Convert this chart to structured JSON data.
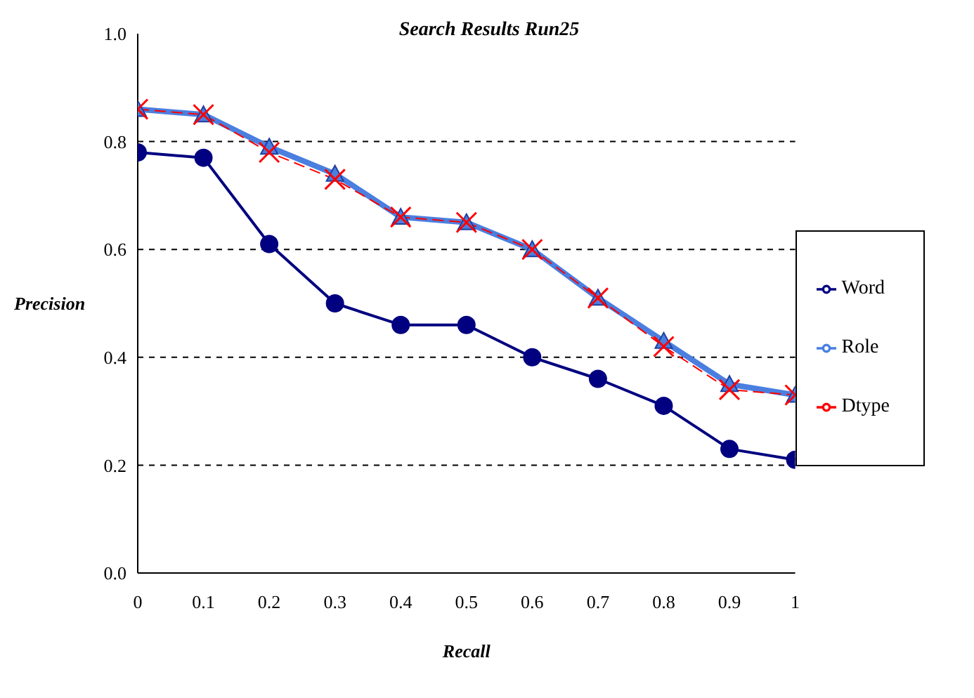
{
  "chart_data": {
    "type": "line",
    "title": "Search Results Run25",
    "xlabel": "Recall",
    "ylabel": "Precision",
    "x": [
      0,
      0.1,
      0.2,
      0.3,
      0.4,
      0.5,
      0.6,
      0.7,
      0.8,
      0.9,
      1
    ],
    "xlim": [
      0,
      1
    ],
    "xticks": [
      {
        "value": 0,
        "label": "0"
      },
      {
        "value": 0.1,
        "label": "0.1"
      },
      {
        "value": 0.2,
        "label": "0.2"
      },
      {
        "value": 0.3,
        "label": "0.3"
      },
      {
        "value": 0.4,
        "label": "0.4"
      },
      {
        "value": 0.5,
        "label": "0.5"
      },
      {
        "value": 0.6,
        "label": "0.6"
      },
      {
        "value": 0.7,
        "label": "0.7"
      },
      {
        "value": 0.8,
        "label": "0.8"
      },
      {
        "value": 0.9,
        "label": "0.9"
      },
      {
        "value": 1,
        "label": "1"
      }
    ],
    "ylim": [
      0,
      1
    ],
    "yticks": [
      {
        "value": 0,
        "label": "0.0"
      },
      {
        "value": 0.2,
        "label": "0.2"
      },
      {
        "value": 0.4,
        "label": "0.4"
      },
      {
        "value": 0.6,
        "label": "0.6"
      },
      {
        "value": 0.8,
        "label": "0.8"
      },
      {
        "value": 1,
        "label": "1.0"
      }
    ],
    "grid": "y",
    "legend": "right",
    "series": [
      {
        "name": "Word",
        "color": "#000080",
        "marker": "circle",
        "line_style": "solid",
        "values": [
          0.78,
          0.77,
          0.61,
          0.5,
          0.46,
          0.46,
          0.4,
          0.36,
          0.31,
          0.23,
          0.21
        ]
      },
      {
        "name": "Role",
        "color": "#4a7fe0",
        "marker": "triangle",
        "line_style": "solid",
        "values": [
          0.86,
          0.85,
          0.79,
          0.74,
          0.66,
          0.65,
          0.6,
          0.51,
          0.43,
          0.35,
          0.33
        ]
      },
      {
        "name": "Dtype",
        "color": "#ff0000",
        "marker": "cross",
        "line_style": "dashed",
        "values": [
          0.86,
          0.85,
          0.78,
          0.73,
          0.66,
          0.65,
          0.6,
          0.51,
          0.42,
          0.34,
          0.33
        ]
      }
    ]
  }
}
